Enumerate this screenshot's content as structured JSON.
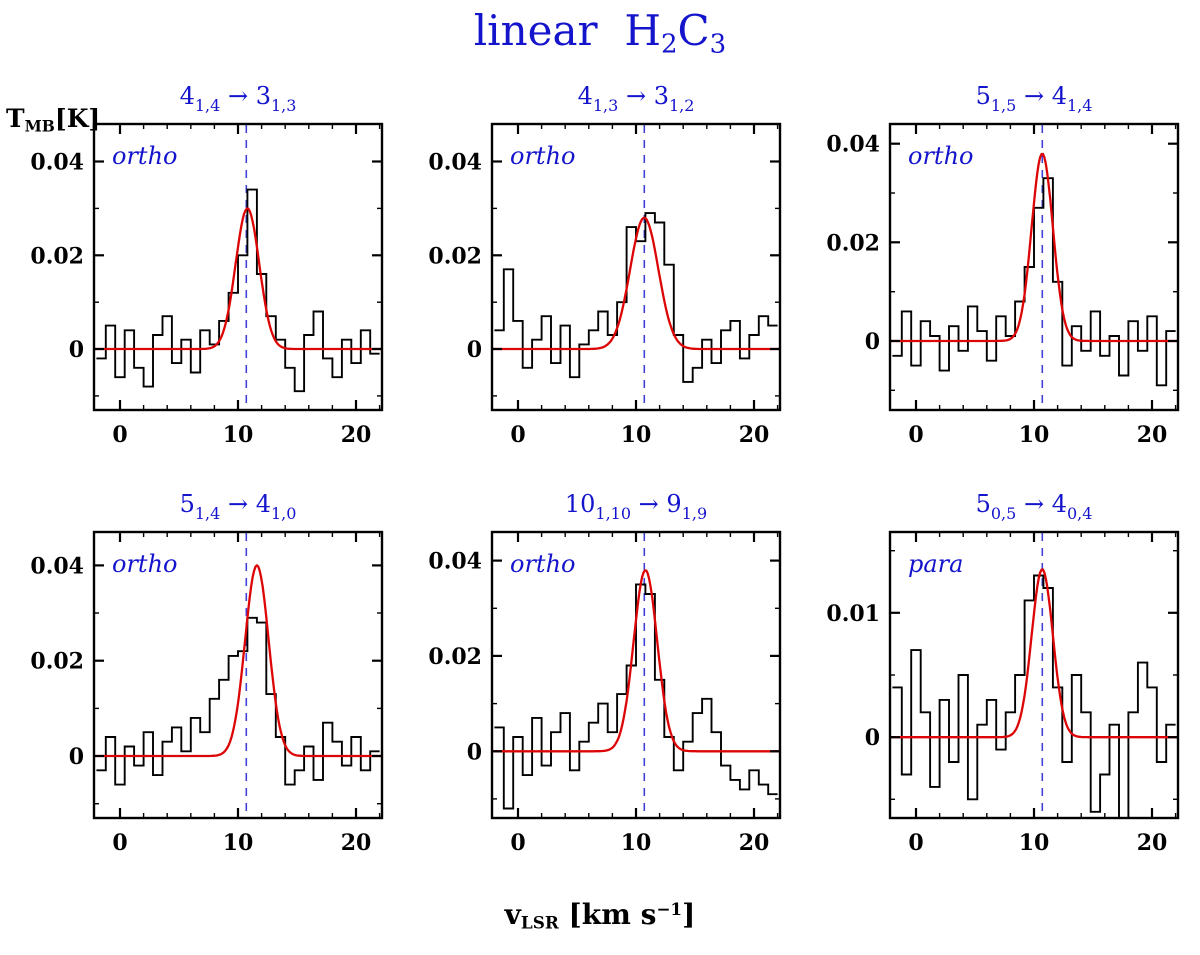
{
  "figure_title": {
    "segments": [
      {
        "t": "linear  H"
      },
      {
        "t": "2",
        "sub": true
      },
      {
        "t": "C"
      },
      {
        "t": "3",
        "sub": true
      }
    ]
  },
  "y_axis_label": {
    "segments": [
      {
        "t": "T"
      },
      {
        "t": "MB",
        "sub": true
      },
      {
        "t": "[K]"
      }
    ]
  },
  "x_axis_label": {
    "segments": [
      {
        "t": "v"
      },
      {
        "t": "LSR",
        "sub": true
      },
      {
        "t": " [km s"
      },
      {
        "t": "−1",
        "sup": true
      },
      {
        "t": "]"
      }
    ]
  },
  "colors": {
    "accent_blue": "#1414cd",
    "dash_blue": "#4040d8",
    "fit_red": "#dd0606",
    "spectrum_black": "#000000"
  },
  "chart_data": [
    {
      "type": "line",
      "title_parts": [
        {
          "t": "4"
        },
        {
          "t": "1,4",
          "sub": true
        },
        {
          "t": " → "
        },
        {
          "t": "3"
        },
        {
          "t": "1,3",
          "sub": true
        }
      ],
      "state_label": "ortho",
      "xlim": [
        -2.2,
        22.2
      ],
      "ylim": [
        -0.013,
        0.048
      ],
      "xticks": {
        "major": [
          0,
          10,
          20
        ],
        "labels": [
          "0",
          "10",
          "20"
        ],
        "minor": [
          2,
          4,
          6,
          8,
          12,
          14,
          16,
          18,
          22
        ]
      },
      "yticks": {
        "major": [
          0,
          0.02,
          0.04
        ],
        "labels": [
          "0",
          "0.02",
          "0.04"
        ],
        "minor": [
          -0.01,
          0.01,
          0.03
        ]
      },
      "vline_x": 10.7,
      "fit_gaussian": {
        "amplitude_K": 0.03,
        "center_kms": 10.8,
        "sigma_kms": 1.0
      },
      "histogram": {
        "x_start_kms": -2.0,
        "bin_width_kms": 0.8,
        "values_K": [
          -0.002,
          0.005,
          -0.006,
          0.004,
          -0.004,
          -0.008,
          0.003,
          0.007,
          -0.003,
          0.002,
          -0.005,
          0.004,
          0.001,
          0.006,
          0.012,
          0.02,
          0.034,
          0.016,
          0.007,
          0.002,
          -0.004,
          -0.009,
          0.003,
          0.008,
          -0.002,
          -0.006,
          0.002,
          -0.003,
          0.004,
          -0.001
        ]
      }
    },
    {
      "type": "line",
      "title_parts": [
        {
          "t": "4"
        },
        {
          "t": "1,3",
          "sub": true
        },
        {
          "t": " → "
        },
        {
          "t": "3"
        },
        {
          "t": "1,2",
          "sub": true
        }
      ],
      "state_label": "ortho",
      "xlim": [
        -2.2,
        22.2
      ],
      "ylim": [
        -0.013,
        0.048
      ],
      "xticks": {
        "major": [
          0,
          10,
          20
        ],
        "labels": [
          "0",
          "10",
          "20"
        ],
        "minor": [
          2,
          4,
          6,
          8,
          12,
          14,
          16,
          18,
          22
        ]
      },
      "yticks": {
        "major": [
          0,
          0.02,
          0.04
        ],
        "labels": [
          "0",
          "0.02",
          "0.04"
        ],
        "minor": [
          -0.01,
          0.01,
          0.03
        ]
      },
      "vline_x": 10.7,
      "fit_gaussian": {
        "amplitude_K": 0.028,
        "center_kms": 10.7,
        "sigma_kms": 1.2
      },
      "histogram": {
        "x_start_kms": -2.0,
        "bin_width_kms": 0.8,
        "values_K": [
          0.004,
          0.017,
          0.006,
          -0.004,
          0.002,
          0.007,
          -0.003,
          0.005,
          -0.006,
          0.001,
          0.004,
          0.008,
          0.003,
          0.01,
          0.026,
          0.023,
          0.029,
          0.027,
          0.018,
          0.003,
          -0.007,
          -0.004,
          0.002,
          -0.003,
          0.004,
          0.006,
          -0.002,
          0.003,
          0.007,
          0.005
        ]
      }
    },
    {
      "type": "line",
      "title_parts": [
        {
          "t": "5"
        },
        {
          "t": "1,5",
          "sub": true
        },
        {
          "t": " → "
        },
        {
          "t": "4"
        },
        {
          "t": "1,4",
          "sub": true
        }
      ],
      "state_label": "ortho",
      "xlim": [
        -2.2,
        22.2
      ],
      "ylim": [
        -0.014,
        0.044
      ],
      "xticks": {
        "major": [
          0,
          10,
          20
        ],
        "labels": [
          "0",
          "10",
          "20"
        ],
        "minor": [
          2,
          4,
          6,
          8,
          12,
          14,
          16,
          18,
          22
        ]
      },
      "yticks": {
        "major": [
          0,
          0.02,
          0.04
        ],
        "labels": [
          "0",
          "0.02",
          "0.04"
        ],
        "minor": [
          -0.01,
          0.01,
          0.03
        ]
      },
      "vline_x": 10.7,
      "fit_gaussian": {
        "amplitude_K": 0.038,
        "center_kms": 10.7,
        "sigma_kms": 0.9
      },
      "histogram": {
        "x_start_kms": -2.0,
        "bin_width_kms": 0.8,
        "values_K": [
          -0.003,
          0.006,
          -0.005,
          0.004,
          0.001,
          -0.006,
          0.003,
          -0.002,
          0.007,
          0.002,
          -0.004,
          0.005,
          0.001,
          0.008,
          0.015,
          0.027,
          0.033,
          0.012,
          -0.005,
          0.003,
          -0.002,
          0.006,
          -0.003,
          0.001,
          -0.007,
          0.004,
          -0.002,
          0.005,
          -0.009,
          0.002
        ]
      }
    },
    {
      "type": "line",
      "title_parts": [
        {
          "t": "5"
        },
        {
          "t": "1,4",
          "sub": true
        },
        {
          "t": " → "
        },
        {
          "t": "4"
        },
        {
          "t": "1,0",
          "sub": true
        }
      ],
      "state_label": "ortho",
      "xlim": [
        -2.2,
        22.2
      ],
      "ylim": [
        -0.013,
        0.047
      ],
      "xticks": {
        "major": [
          0,
          10,
          20
        ],
        "labels": [
          "0",
          "10",
          "20"
        ],
        "minor": [
          2,
          4,
          6,
          8,
          12,
          14,
          16,
          18,
          22
        ]
      },
      "yticks": {
        "major": [
          0,
          0.02,
          0.04
        ],
        "labels": [
          "0",
          "0.02",
          "0.04"
        ],
        "minor": [
          -0.01,
          0.01,
          0.03
        ]
      },
      "vline_x": 10.7,
      "fit_gaussian": {
        "amplitude_K": 0.04,
        "center_kms": 11.6,
        "sigma_kms": 1.0
      },
      "histogram": {
        "x_start_kms": -2.0,
        "bin_width_kms": 0.8,
        "values_K": [
          -0.003,
          0.004,
          -0.006,
          0.002,
          -0.002,
          0.005,
          -0.004,
          0.003,
          0.006,
          0.001,
          0.008,
          0.005,
          0.012,
          0.016,
          0.021,
          0.022,
          0.029,
          0.028,
          0.013,
          0.004,
          -0.006,
          -0.003,
          0.002,
          -0.005,
          0.007,
          0.003,
          -0.002,
          0.004,
          -0.003,
          0.001
        ]
      }
    },
    {
      "type": "line",
      "title_parts": [
        {
          "t": "10"
        },
        {
          "t": "1,10",
          "sub": true
        },
        {
          "t": " → "
        },
        {
          "t": "9"
        },
        {
          "t": "1,9",
          "sub": true
        }
      ],
      "state_label": "ortho",
      "xlim": [
        -2.2,
        22.2
      ],
      "ylim": [
        -0.014,
        0.046
      ],
      "xticks": {
        "major": [
          0,
          10,
          20
        ],
        "labels": [
          "0",
          "10",
          "20"
        ],
        "minor": [
          2,
          4,
          6,
          8,
          12,
          14,
          16,
          18,
          22
        ]
      },
      "yticks": {
        "major": [
          0,
          0.02,
          0.04
        ],
        "labels": [
          "0",
          "0.02",
          "0.04"
        ],
        "minor": [
          -0.01,
          0.01,
          0.03
        ]
      },
      "vline_x": 10.7,
      "fit_gaussian": {
        "amplitude_K": 0.038,
        "center_kms": 10.8,
        "sigma_kms": 1.0
      },
      "histogram": {
        "x_start_kms": -2.0,
        "bin_width_kms": 0.8,
        "values_K": [
          0.005,
          -0.012,
          0.003,
          -0.005,
          0.007,
          -0.003,
          0.004,
          0.008,
          -0.004,
          0.002,
          0.006,
          0.01,
          0.004,
          0.012,
          0.018,
          0.035,
          0.033,
          0.015,
          0.003,
          -0.004,
          0.002,
          0.008,
          0.011,
          0.004,
          -0.003,
          -0.006,
          -0.008,
          -0.004,
          -0.007,
          -0.009
        ]
      }
    },
    {
      "type": "line",
      "title_parts": [
        {
          "t": "5"
        },
        {
          "t": "0,5",
          "sub": true
        },
        {
          "t": " → "
        },
        {
          "t": "4"
        },
        {
          "t": "0,4",
          "sub": true
        }
      ],
      "state_label": "para",
      "xlim": [
        -2.2,
        22.2
      ],
      "ylim": [
        -0.0065,
        0.0165
      ],
      "xticks": {
        "major": [
          0,
          10,
          20
        ],
        "labels": [
          "0",
          "10",
          "20"
        ],
        "minor": [
          2,
          4,
          6,
          8,
          12,
          14,
          16,
          18,
          22
        ]
      },
      "yticks": {
        "major": [
          0,
          0.01
        ],
        "labels": [
          "0",
          "0.01"
        ],
        "minor": [
          -0.005,
          0.005,
          0.015
        ]
      },
      "vline_x": 10.7,
      "fit_gaussian": {
        "amplitude_K": 0.0135,
        "center_kms": 10.7,
        "sigma_kms": 0.9
      },
      "histogram": {
        "x_start_kms": -2.0,
        "bin_width_kms": 0.8,
        "values_K": [
          0.004,
          -0.003,
          0.007,
          0.002,
          -0.004,
          0.003,
          -0.002,
          0.005,
          -0.005,
          0.001,
          0.003,
          -0.001,
          0.002,
          0.005,
          0.011,
          0.013,
          0.012,
          0.004,
          -0.002,
          0.005,
          0.002,
          -0.006,
          -0.003,
          0.001,
          -0.008,
          0.002,
          0.006,
          0.004,
          -0.002,
          0.001
        ]
      }
    }
  ]
}
